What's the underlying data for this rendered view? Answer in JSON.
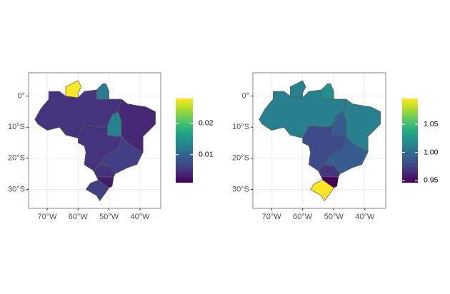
{
  "chart_data": [
    {
      "type": "choropleth",
      "colormap": "viridis",
      "xlim": [
        -76,
        -33.3
      ],
      "ylim": [
        -36.1,
        7.5
      ],
      "xticks": [
        {
          "value": -70,
          "label": "70°W"
        },
        {
          "value": -60,
          "label": "60°W"
        },
        {
          "value": -50,
          "label": "50°W"
        },
        {
          "value": -40,
          "label": "40°W"
        }
      ],
      "yticks": [
        {
          "value": 0,
          "label": "0°"
        },
        {
          "value": -10,
          "label": "10°S"
        },
        {
          "value": -20,
          "label": "20°S"
        },
        {
          "value": -30,
          "label": "30°S"
        }
      ],
      "values": [
        0.005,
        0.028,
        0.012,
        0.013,
        0.004,
        0.005,
        0.006,
        0.005,
        0.003,
        0.006
      ],
      "colorbar": {
        "lim": [
          0.001,
          0.028
        ],
        "ticks": [
          0.01,
          0.02
        ]
      }
    },
    {
      "type": "choropleth",
      "colormap": "viridis",
      "xlim": [
        -76,
        -33.3
      ],
      "ylim": [
        -36.1,
        7.5
      ],
      "xticks": [
        {
          "value": -70,
          "label": "70°W"
        },
        {
          "value": -60,
          "label": "60°W"
        },
        {
          "value": -50,
          "label": "50°W"
        },
        {
          "value": -40,
          "label": "40°W"
        }
      ],
      "yticks": [
        {
          "value": 0,
          "label": "0°"
        },
        {
          "value": -10,
          "label": "10°S"
        },
        {
          "value": -20,
          "label": "20°S"
        },
        {
          "value": -30,
          "label": "30°S"
        }
      ],
      "values": [
        1.01,
        1.01,
        1.02,
        0.99,
        1.01,
        0.98,
        0.99,
        0.97,
        0.946,
        1.096
      ],
      "colorbar": {
        "lim": [
          0.946,
          1.096
        ],
        "ticks": [
          0.95,
          {
            "value": 1,
            "label": "1.00"
          },
          1.05
        ]
      }
    }
  ]
}
